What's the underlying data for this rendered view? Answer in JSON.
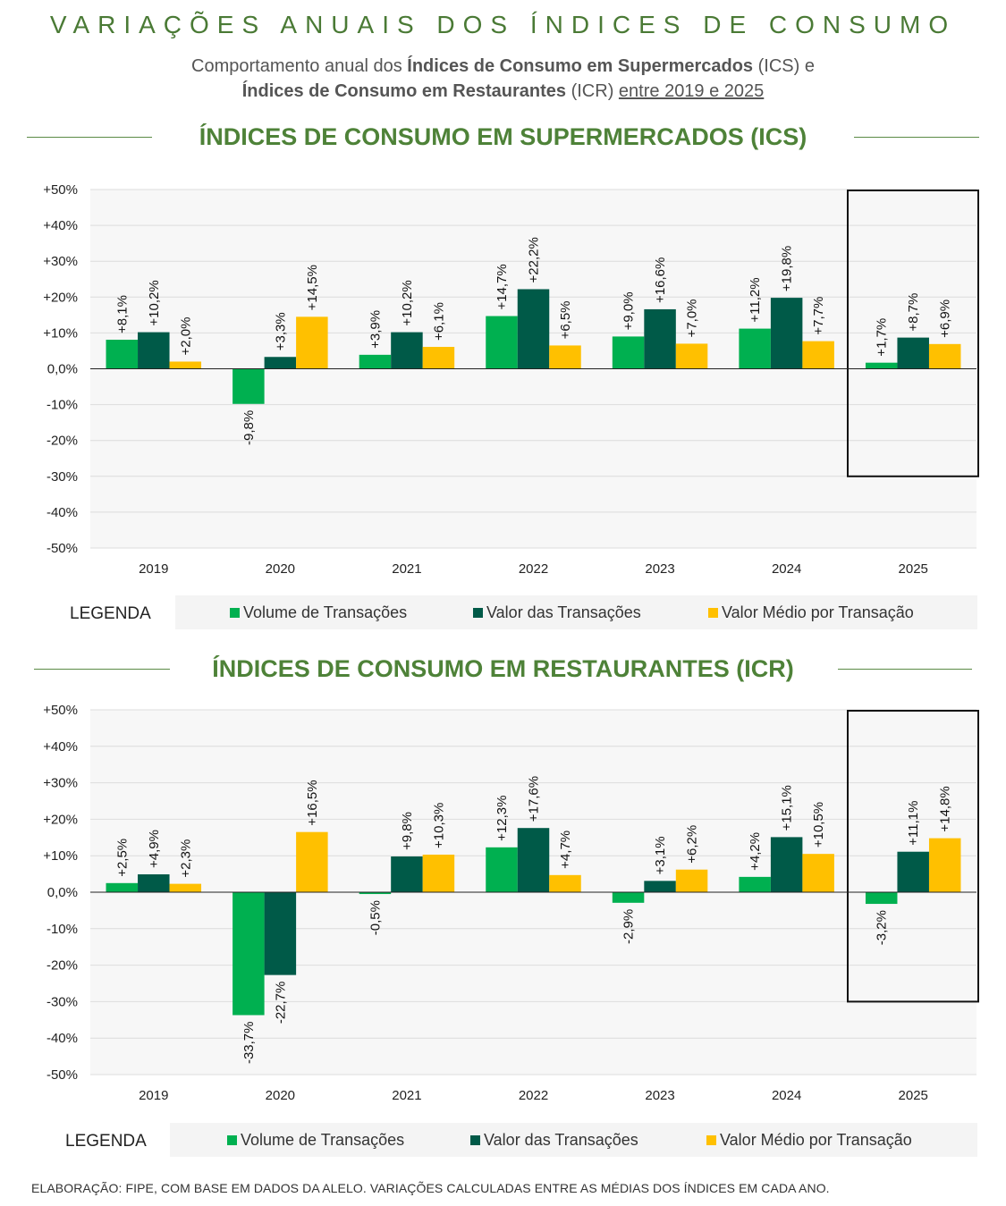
{
  "header": {
    "title": "VARIAÇÕES ANUAIS DOS ÍNDICES DE CONSUMO",
    "subtitle_part1": "Comportamento anual dos ",
    "subtitle_bold1": "Índices de Consumo em Supermercados",
    "subtitle_part2": " (ICS) e",
    "subtitle_bold2": "Índices de Consumo em Restaurantes",
    "subtitle_part3": " (ICR) ",
    "subtitle_underlined": "entre 2019 e 2025"
  },
  "colors": {
    "volume": "#00b050",
    "valor": "#005a48",
    "medio": "#ffc000",
    "heading": "#4e8238"
  },
  "legend": {
    "title": "LEGENDA",
    "volume": "Volume de Transações",
    "valor": "Valor das Transações",
    "medio": "Valor Médio por Transação"
  },
  "footer": "ELABORAÇÃO: FIPE, COM BASE EM DADOS DA ALELO. VARIAÇÕES CALCULADAS ENTRE AS MÉDIAS DOS ÍNDICES EM CADA ANO.",
  "chart_data": [
    {
      "id": "ics",
      "type": "bar",
      "title": "ÍNDICES DE CONSUMO EM SUPERMERCADOS (ICS)",
      "categories": [
        "2019",
        "2020",
        "2021",
        "2022",
        "2023",
        "2024",
        "2025"
      ],
      "ylim": [
        -50,
        50
      ],
      "yticks": [
        "+50%",
        "+40%",
        "+30%",
        "+20%",
        "+10%",
        "0,0%",
        "-10%",
        "-20%",
        "-30%",
        "-40%",
        "-50%"
      ],
      "highlight_category": "2025",
      "series": [
        {
          "name": "Volume de Transações",
          "key": "volume",
          "values": [
            8.1,
            -9.8,
            3.9,
            14.7,
            9.0,
            11.2,
            1.7
          ],
          "labels": [
            "+8,1%",
            "-9,8%",
            "+3,9%",
            "+14,7%",
            "+9,0%",
            "+11,2%",
            "+1,7%"
          ]
        },
        {
          "name": "Valor das Transações",
          "key": "valor",
          "values": [
            10.2,
            3.3,
            10.2,
            22.2,
            16.6,
            19.8,
            8.7
          ],
          "labels": [
            "+10,2%",
            "+3,3%",
            "+10,2%",
            "+22,2%",
            "+16,6%",
            "+19,8%",
            "+8,7%"
          ]
        },
        {
          "name": "Valor Médio por Transação",
          "key": "medio",
          "values": [
            2.0,
            14.5,
            6.1,
            6.5,
            7.0,
            7.7,
            6.9
          ],
          "labels": [
            "+2,0%",
            "+14,5%",
            "+6,1%",
            "+6,5%",
            "+7,0%",
            "+7,7%",
            "+6,9%"
          ]
        }
      ]
    },
    {
      "id": "icr",
      "type": "bar",
      "title": "ÍNDICES DE CONSUMO EM RESTAURANTES (ICR)",
      "categories": [
        "2019",
        "2020",
        "2021",
        "2022",
        "2023",
        "2024",
        "2025"
      ],
      "ylim": [
        -50,
        50
      ],
      "yticks": [
        "+50%",
        "+40%",
        "+30%",
        "+20%",
        "+10%",
        "0,0%",
        "-10%",
        "-20%",
        "-30%",
        "-40%",
        "-50%"
      ],
      "highlight_category": "2025",
      "series": [
        {
          "name": "Volume de Transações",
          "key": "volume",
          "values": [
            2.5,
            -33.7,
            -0.5,
            12.3,
            -2.9,
            4.2,
            -3.2
          ],
          "labels": [
            "+2,5%",
            "-33,7%",
            "-0,5%",
            "+12,3%",
            "-2,9%",
            "+4,2%",
            "-3,2%"
          ]
        },
        {
          "name": "Valor das Transações",
          "key": "valor",
          "values": [
            4.9,
            -22.7,
            9.8,
            17.6,
            3.1,
            15.1,
            11.1
          ],
          "labels": [
            "+4,9%",
            "-22,7%",
            "+9,8%",
            "+17,6%",
            "+3,1%",
            "+15,1%",
            "+11,1%"
          ]
        },
        {
          "name": "Valor Médio por Transação",
          "key": "medio",
          "values": [
            2.3,
            16.5,
            10.3,
            4.7,
            6.2,
            10.5,
            14.8
          ],
          "labels": [
            "+2,3%",
            "+16,5%",
            "+10,3%",
            "+4,7%",
            "+6,2%",
            "+10,5%",
            "+14,8%"
          ]
        }
      ]
    }
  ]
}
